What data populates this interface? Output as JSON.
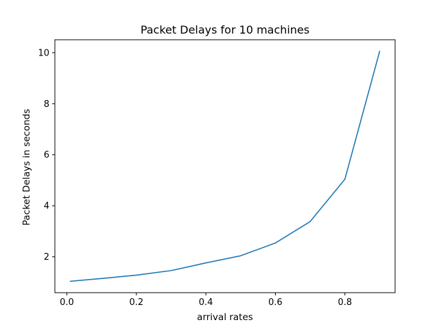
{
  "chart_data": {
    "type": "line",
    "title": "Packet Delays for 10 machines",
    "xlabel": "arrival rates",
    "ylabel": "Packet Delays in seconds",
    "xlim": [
      -0.0345,
      0.9445
    ],
    "ylim": [
      0.594,
      10.506
    ],
    "x_ticks": [
      0.0,
      0.2,
      0.4,
      0.6,
      0.8
    ],
    "x_tick_labels": [
      "0.0",
      "0.2",
      "0.4",
      "0.6",
      "0.8"
    ],
    "y_ticks": [
      2,
      4,
      6,
      8,
      10
    ],
    "y_tick_labels": [
      "2",
      "4",
      "6",
      "8",
      "10"
    ],
    "grid": false,
    "legend": "none",
    "series": [
      {
        "color": "#1f77b4",
        "x": [
          0.01,
          0.1,
          0.2,
          0.3,
          0.4,
          0.5,
          0.6,
          0.7,
          0.8,
          0.9
        ],
        "y": [
          1.04,
          1.15,
          1.28,
          1.46,
          1.76,
          2.04,
          2.54,
          3.38,
          5.04,
          10.05
        ]
      }
    ]
  }
}
